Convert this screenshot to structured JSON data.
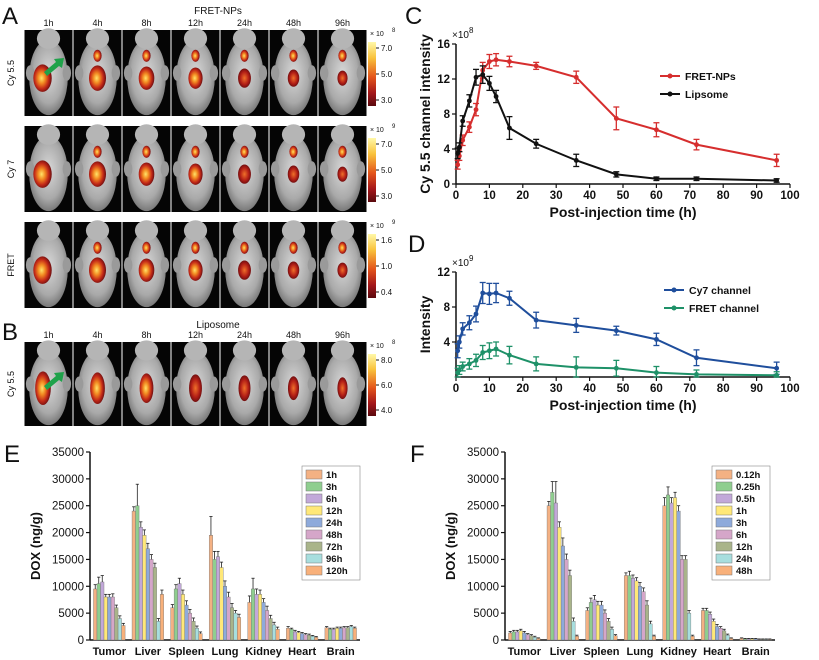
{
  "panels": {
    "A": {
      "letter": "A",
      "title": "FRET-NPs",
      "timepoints": [
        "1h",
        "4h",
        "8h",
        "12h",
        "24h",
        "48h",
        "96h"
      ],
      "rows": [
        {
          "label": "Cy 5.5",
          "scale_exp": "× 10",
          "scale_pow": "8",
          "ticks": [
            "7.0",
            "5.0",
            "3.0"
          ]
        },
        {
          "label": "Cy 7",
          "scale_exp": "× 10",
          "scale_pow": "9",
          "ticks": [
            "7.0",
            "5.0",
            "3.0"
          ]
        },
        {
          "label": "FRET",
          "scale_exp": "× 10",
          "scale_pow": "9",
          "ticks": [
            "1.6",
            "1.0",
            "0.4"
          ]
        }
      ]
    },
    "B": {
      "letter": "B",
      "title": "Liposome",
      "timepoints": [
        "1h",
        "4h",
        "8h",
        "12h",
        "24h",
        "48h",
        "96h"
      ],
      "rows": [
        {
          "label": "Cy 5.5",
          "scale_exp": "× 10",
          "scale_pow": "8",
          "ticks": [
            "8.0",
            "6.0",
            "4.0"
          ]
        }
      ]
    }
  },
  "colors": {
    "red_series": "#d62e2e",
    "black_series": "#111111",
    "blue_series": "#1f4e9c",
    "green_series": "#1e9168",
    "heat_high": "#fff7a0",
    "heat_mid": "#e8591a",
    "heat_low": "#6a0d10"
  },
  "chart_data": [
    {
      "id": "C",
      "letter": "C",
      "type": "line",
      "title": "",
      "xlabel": "Post-injection time (h)",
      "ylabel": "Cy 5.5 channel intensity",
      "y_multiplier": "×10",
      "y_multiplier_pow": "8",
      "xlim": [
        0,
        100
      ],
      "ylim": [
        0,
        16
      ],
      "xticks": [
        0,
        10,
        20,
        30,
        40,
        50,
        60,
        70,
        80,
        90,
        100
      ],
      "yticks": [
        0,
        4,
        8,
        12,
        16
      ],
      "legend_position": "right",
      "series": [
        {
          "name": "FRET-NPs",
          "color": "#d62e2e",
          "x": [
            0.5,
            1,
            2,
            4,
            6,
            8,
            10,
            12,
            16,
            24,
            36,
            48,
            60,
            72,
            96
          ],
          "y": [
            2.2,
            3.2,
            5.0,
            6.5,
            8.5,
            13.0,
            14.0,
            14.2,
            14.0,
            13.5,
            12.2,
            7.5,
            6.2,
            4.5,
            2.7
          ],
          "err": [
            0.5,
            0.5,
            0.6,
            0.6,
            0.7,
            0.9,
            0.8,
            0.7,
            0.6,
            0.4,
            0.7,
            1.3,
            0.8,
            0.6,
            0.7
          ]
        },
        {
          "name": "Lipsome",
          "color": "#111111",
          "x": [
            0.5,
            1,
            2,
            4,
            6,
            8,
            10,
            12,
            16,
            24,
            36,
            48,
            60,
            72,
            96
          ],
          "y": [
            3.5,
            4.2,
            7.2,
            9.5,
            12.2,
            12.5,
            11.5,
            10.0,
            6.4,
            4.6,
            2.7,
            1.1,
            0.6,
            0.6,
            0.4
          ],
          "err": [
            0.6,
            0.5,
            0.6,
            0.7,
            0.9,
            1.0,
            0.8,
            0.7,
            1.3,
            0.5,
            0.7,
            0.3,
            0.2,
            0.2,
            0.2
          ]
        }
      ]
    },
    {
      "id": "D",
      "letter": "D",
      "type": "line",
      "title": "",
      "xlabel": "Post-injection time (h)",
      "ylabel": "Intensity",
      "y_multiplier": "×10",
      "y_multiplier_pow": "9",
      "xlim": [
        0,
        100
      ],
      "ylim": [
        0,
        12
      ],
      "xticks": [
        0,
        10,
        20,
        30,
        40,
        50,
        60,
        70,
        80,
        90,
        100
      ],
      "yticks": [
        4,
        8,
        12
      ],
      "legend_position": "top-right",
      "series": [
        {
          "name": "Cy7 channel",
          "color": "#1f4e9c",
          "x": [
            0.5,
            1,
            2,
            4,
            6,
            8,
            10,
            12,
            16,
            24,
            36,
            48,
            60,
            72,
            96
          ],
          "y": [
            3.0,
            4.0,
            5.5,
            6.2,
            7.2,
            9.6,
            9.5,
            9.6,
            9.0,
            6.5,
            5.9,
            5.3,
            4.3,
            2.2,
            1.0
          ],
          "err": [
            0.8,
            0.7,
            0.7,
            0.8,
            0.9,
            1.2,
            1.2,
            1.1,
            0.8,
            0.9,
            0.8,
            0.5,
            0.7,
            0.9,
            0.7
          ]
        },
        {
          "name": "FRET channel",
          "color": "#1e9168",
          "x": [
            0.5,
            1,
            2,
            4,
            6,
            8,
            10,
            12,
            16,
            24,
            36,
            48,
            60,
            72,
            96
          ],
          "y": [
            0.5,
            0.8,
            1.2,
            1.5,
            1.9,
            2.8,
            3.0,
            3.2,
            2.5,
            1.5,
            1.1,
            1.0,
            0.5,
            0.3,
            0.2
          ],
          "err": [
            0.5,
            0.5,
            0.5,
            0.6,
            0.7,
            0.8,
            0.9,
            0.8,
            1.0,
            0.8,
            1.2,
            0.9,
            0.7,
            0.5,
            0.4
          ]
        }
      ]
    },
    {
      "id": "E",
      "letter": "E",
      "type": "bar",
      "title": "",
      "xlabel": "",
      "ylabel": "DOX (ng/g)",
      "ylim": [
        0,
        35000
      ],
      "yticks": [
        0,
        5000,
        10000,
        15000,
        20000,
        25000,
        30000,
        35000
      ],
      "categories": [
        "Tumor",
        "Liver",
        "Spleen",
        "Lung",
        "Kidney",
        "Heart",
        "Brain"
      ],
      "legend_position": "top-right",
      "series": [
        {
          "name": "1h",
          "color": "#f4b183",
          "values": [
            9500,
            24000,
            6000,
            19500,
            7000,
            2200,
            2300
          ],
          "err": [
            800,
            800,
            600,
            3500,
            1200,
            300,
            200
          ]
        },
        {
          "name": "3h",
          "color": "#8fce8f",
          "values": [
            10500,
            25000,
            9500,
            15000,
            9500,
            2000,
            2000
          ],
          "err": [
            1200,
            4000,
            800,
            1500,
            2000,
            200,
            200
          ]
        },
        {
          "name": "6h",
          "color": "#c2a8d9",
          "values": [
            10800,
            21000,
            10500,
            15500,
            8500,
            1500,
            2000
          ],
          "err": [
            1200,
            1000,
            1000,
            1000,
            1000,
            300,
            200
          ]
        },
        {
          "name": "12h",
          "color": "#ffe878",
          "values": [
            8000,
            19500,
            8500,
            13500,
            8500,
            1400,
            2200
          ],
          "err": [
            500,
            1000,
            800,
            1000,
            800,
            200,
            200
          ]
        },
        {
          "name": "24h",
          "color": "#8eaadb",
          "values": [
            8000,
            17000,
            6500,
            10000,
            7000,
            1200,
            2200
          ],
          "err": [
            500,
            1000,
            800,
            1000,
            700,
            200,
            200
          ]
        },
        {
          "name": "48h",
          "color": "#d5a6c9",
          "values": [
            8000,
            15000,
            5000,
            8000,
            5500,
            1000,
            2300
          ],
          "err": [
            600,
            900,
            700,
            900,
            800,
            200,
            200
          ]
        },
        {
          "name": "72h",
          "color": "#a9b48a",
          "values": [
            6000,
            13500,
            3500,
            6000,
            4000,
            900,
            2300
          ],
          "err": [
            500,
            800,
            600,
            800,
            600,
            200,
            200
          ]
        },
        {
          "name": "96h",
          "color": "#a7dede",
          "values": [
            4000,
            3500,
            2200,
            5000,
            2800,
            700,
            2500
          ],
          "err": [
            500,
            500,
            400,
            500,
            500,
            150,
            200
          ]
        },
        {
          "name": "120h",
          "color": "#f8b07a",
          "values": [
            2700,
            8500,
            1200,
            4200,
            2000,
            500,
            2200
          ],
          "err": [
            400,
            800,
            300,
            600,
            400,
            150,
            200
          ]
        }
      ]
    },
    {
      "id": "F",
      "letter": "F",
      "type": "bar",
      "title": "",
      "xlabel": "",
      "ylabel": "DOX (ng/g)",
      "ylim": [
        0,
        35000
      ],
      "yticks": [
        0,
        5000,
        10000,
        15000,
        20000,
        25000,
        30000,
        35000
      ],
      "categories": [
        "Tumor",
        "Liver",
        "Spleen",
        "Lung",
        "Kidney",
        "Heart",
        "Brain"
      ],
      "legend_position": "top-right",
      "series": [
        {
          "name": "0.12h",
          "color": "#f4b183",
          "values": [
            1300,
            25000,
            5500,
            12000,
            25000,
            5500,
            300
          ],
          "err": [
            300,
            800,
            500,
            500,
            1500,
            400,
            100
          ]
        },
        {
          "name": "0.25h",
          "color": "#8fce8f",
          "values": [
            1500,
            27500,
            7000,
            12000,
            27000,
            5500,
            200
          ],
          "err": [
            300,
            2000,
            800,
            800,
            1500,
            400,
            100
          ]
        },
        {
          "name": "0.5h",
          "color": "#c2a8d9",
          "values": [
            1500,
            25500,
            7500,
            11500,
            25500,
            4800,
            200
          ],
          "err": [
            300,
            4000,
            800,
            600,
            1000,
            400,
            100
          ]
        },
        {
          "name": "1h",
          "color": "#ffe878",
          "values": [
            1700,
            21000,
            6500,
            11000,
            26500,
            3500,
            200
          ],
          "err": [
            300,
            1000,
            700,
            600,
            1000,
            400,
            100
          ]
        },
        {
          "name": "3h",
          "color": "#8eaadb",
          "values": [
            1300,
            17500,
            6500,
            10000,
            24000,
            2500,
            200
          ],
          "err": [
            300,
            1500,
            700,
            700,
            1000,
            400,
            100
          ]
        },
        {
          "name": "6h",
          "color": "#d5a6c9",
          "values": [
            1000,
            15000,
            5000,
            9000,
            15000,
            2200,
            100
          ],
          "err": [
            200,
            1000,
            600,
            700,
            700,
            300,
            100
          ]
        },
        {
          "name": "12h",
          "color": "#a9b48a",
          "values": [
            800,
            12000,
            3500,
            6500,
            15000,
            1700,
            100
          ],
          "err": [
            200,
            1000,
            500,
            800,
            700,
            300,
            100
          ]
        },
        {
          "name": "24h",
          "color": "#a7dede",
          "values": [
            500,
            3500,
            2000,
            3000,
            5000,
            900,
            100
          ],
          "err": [
            200,
            600,
            400,
            500,
            500,
            200,
            100
          ]
        },
        {
          "name": "48h",
          "color": "#f8b07a",
          "values": [
            300,
            700,
            800,
            700,
            700,
            300,
            100
          ],
          "err": [
            100,
            200,
            200,
            200,
            200,
            100,
            100
          ]
        }
      ]
    }
  ]
}
